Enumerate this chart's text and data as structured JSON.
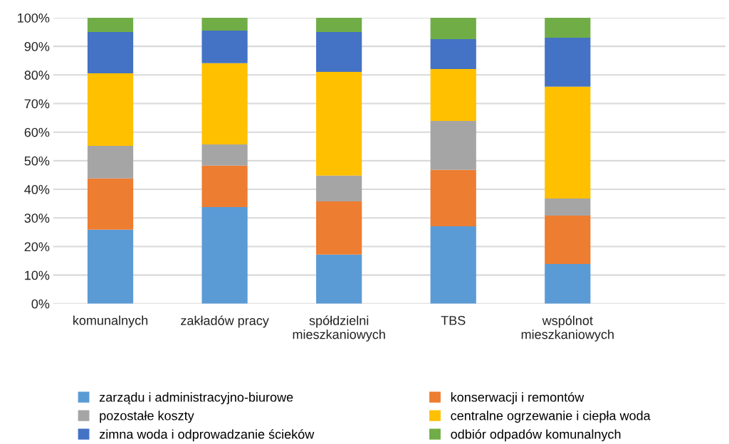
{
  "chart_data": {
    "type": "bar",
    "stacked": true,
    "categories": [
      "komunalnych",
      "zakładów pracy",
      "spółdzielni\nmieszkaniowych",
      "TBS",
      "wspólnot\nmieszkaniowych"
    ],
    "series": [
      {
        "name": "zarządu i administracyjno-biurowe",
        "color": "#5b9bd5",
        "values": [
          25.9,
          33.8,
          17.2,
          27.1,
          13.9
        ]
      },
      {
        "name": "konserwacji i remontów",
        "color": "#ed7d31",
        "values": [
          17.9,
          14.5,
          18.6,
          19.7,
          16.9
        ]
      },
      {
        "name": "pozostałe koszty",
        "color": "#a5a5a5",
        "values": [
          11.4,
          7.4,
          9.0,
          17.1,
          6.0
        ]
      },
      {
        "name": "centralne ogrzewanie i ciepła woda",
        "color": "#ffc000",
        "values": [
          25.4,
          28.4,
          36.3,
          18.2,
          39.1
        ]
      },
      {
        "name": "zimna woda i odprowadzanie ścieków",
        "color": "#4472c4",
        "values": [
          14.4,
          11.4,
          13.9,
          10.4,
          17.1
        ]
      },
      {
        "name": "odbiór odpadów komunalnych",
        "color": "#70ad47",
        "values": [
          5.0,
          4.5,
          5.0,
          7.5,
          7.0
        ]
      }
    ],
    "ylim": [
      0,
      100
    ],
    "yticks": [
      {
        "value": 0,
        "label": "0%"
      },
      {
        "value": 10,
        "label": "10%"
      },
      {
        "value": 20,
        "label": "20%"
      },
      {
        "value": 30,
        "label": "30%"
      },
      {
        "value": 40,
        "label": "40%"
      },
      {
        "value": 50,
        "label": "50%"
      },
      {
        "value": 60,
        "label": "60%"
      },
      {
        "value": 70,
        "label": "70%"
      },
      {
        "value": 80,
        "label": "80%"
      },
      {
        "value": 90,
        "label": "90%"
      },
      {
        "value": 100,
        "label": "100%"
      }
    ],
    "grid": "y",
    "legend": "bottom"
  }
}
